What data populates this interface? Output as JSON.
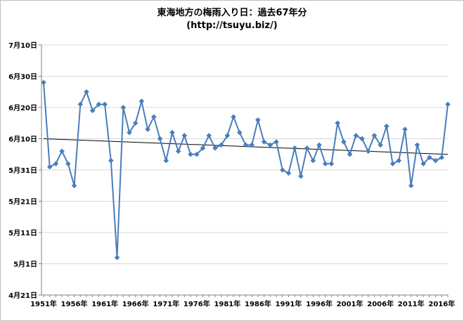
{
  "chart_data": {
    "type": "line",
    "title": "東海地方の梅雨入り日：過去67年分",
    "subtitle": "(http://tsuyu.biz/)",
    "xlabel": "",
    "ylabel": "",
    "x": [
      1951,
      1952,
      1953,
      1954,
      1955,
      1956,
      1957,
      1958,
      1959,
      1960,
      1961,
      1962,
      1963,
      1964,
      1965,
      1966,
      1967,
      1968,
      1969,
      1970,
      1971,
      1972,
      1973,
      1974,
      1975,
      1976,
      1977,
      1978,
      1979,
      1980,
      1981,
      1982,
      1983,
      1984,
      1985,
      1986,
      1987,
      1988,
      1989,
      1990,
      1991,
      1992,
      1993,
      1994,
      1995,
      1996,
      1997,
      1998,
      1999,
      2000,
      2001,
      2002,
      2003,
      2004,
      2005,
      2006,
      2007,
      2008,
      2009,
      2010,
      2011,
      2012,
      2013,
      2014,
      2015,
      2016,
      2017
    ],
    "y": [
      "6/28",
      "6/1",
      "6/2",
      "6/6",
      "6/2",
      "5/26",
      "6/21",
      "6/25",
      "6/19",
      "6/21",
      "6/21",
      "6/3",
      "5/3",
      "6/20",
      "6/12",
      "6/15",
      "6/22",
      "6/13",
      "6/17",
      "6/10",
      "6/3",
      "6/12",
      "6/6",
      "6/11",
      "6/5",
      "6/5",
      "6/7",
      "6/11",
      "6/7",
      "6/8",
      "6/11",
      "6/17",
      "6/12",
      "6/8",
      "6/8",
      "6/16",
      "6/9",
      "6/8",
      "6/9",
      "5/31",
      "5/30",
      "6/7",
      "5/29",
      "6/7",
      "6/3",
      "6/8",
      "6/2",
      "6/2",
      "6/15",
      "6/9",
      "6/5",
      "6/11",
      "6/10",
      "6/6",
      "6/11",
      "6/8",
      "6/14",
      "6/2",
      "6/3",
      "6/13",
      "5/26",
      "6/8",
      "6/2",
      "6/4",
      "6/3",
      "6/4",
      "6/21"
    ],
    "y_tick_labels": [
      "4月21日",
      "5月1日",
      "5月11日",
      "5月21日",
      "5月31日",
      "6月10日",
      "6月20日",
      "6月30日",
      "7月10日"
    ],
    "y_tick_dates": [
      "4/21",
      "5/1",
      "5/11",
      "5/21",
      "5/31",
      "6/10",
      "6/20",
      "6/30",
      "7/10"
    ],
    "x_tick_labels": [
      "1951年",
      "1956年",
      "1961年",
      "1966年",
      "1971年",
      "1976年",
      "1981年",
      "1986年",
      "1991年",
      "1996年",
      "2001年",
      "2006年",
      "2011年",
      "2016年"
    ],
    "x_tick_years": [
      1951,
      1956,
      1961,
      1966,
      1971,
      1976,
      1981,
      1986,
      1991,
      1996,
      2001,
      2006,
      2011,
      2016
    ],
    "ylim": [
      "4/21",
      "7/10"
    ],
    "trendline": {
      "y_start": "6/10",
      "y_end": "6/5"
    },
    "grid": true,
    "legend": "none",
    "colors": {
      "series": "#4a7ebb",
      "trend": "#000000",
      "grid": "#d9d9d9"
    }
  }
}
